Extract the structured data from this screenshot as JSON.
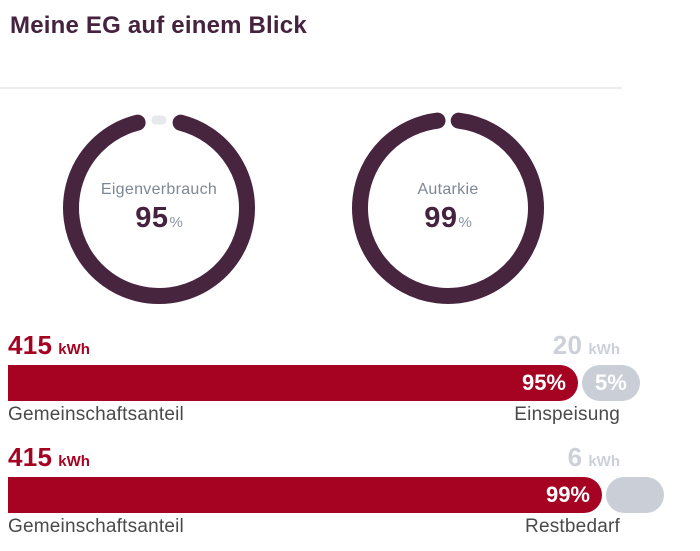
{
  "header": {
    "title": "Meine EG auf einem Blick"
  },
  "donuts": [
    {
      "label": "Eigenverbrauch",
      "value": "95",
      "unit": "%"
    },
    {
      "label": "Autarkie",
      "value": "99",
      "unit": "%"
    }
  ],
  "bars": [
    {
      "primary_value": "415",
      "primary_unit": "kWh",
      "secondary_value": "20",
      "secondary_unit": "kWh",
      "primary_percent": "95%",
      "secondary_percent": "5%",
      "primary_label": "Gemeinschaftsanteil",
      "secondary_label": "Einspeisung"
    },
    {
      "primary_value": "415",
      "primary_unit": "kWh",
      "secondary_value": "6",
      "secondary_unit": "kWh",
      "primary_percent": "99%",
      "secondary_percent": "",
      "primary_label": "Gemeinschaftsanteil",
      "secondary_label": "Restbedarf"
    }
  ],
  "colors": {
    "accent_purple": "#45233f",
    "accent_red": "#a50321",
    "light_gray_text": "#ccd1d9",
    "pill_gray": "#c9ced7",
    "remainder_gray": "#e6e8ec",
    "donut_label_gray": "#7e8795",
    "footer_label_gray": "#4a4a4a"
  },
  "chart_data": [
    {
      "type": "pie",
      "subtype": "donut-gauge",
      "title": "Eigenverbrauch",
      "value": 95,
      "unit": "%"
    },
    {
      "type": "pie",
      "subtype": "donut-gauge",
      "title": "Autarkie",
      "value": 99,
      "unit": "%"
    },
    {
      "type": "bar",
      "subtype": "stacked-horizontal",
      "categories": [
        "Gemeinschaftsanteil",
        "Einspeisung"
      ],
      "values_kwh": [
        415,
        20
      ],
      "percents": [
        95,
        5
      ],
      "unit": "kWh"
    },
    {
      "type": "bar",
      "subtype": "stacked-horizontal",
      "categories": [
        "Gemeinschaftsanteil",
        "Restbedarf"
      ],
      "values_kwh": [
        415,
        6
      ],
      "percents": [
        99,
        null
      ],
      "unit": "kWh"
    }
  ]
}
